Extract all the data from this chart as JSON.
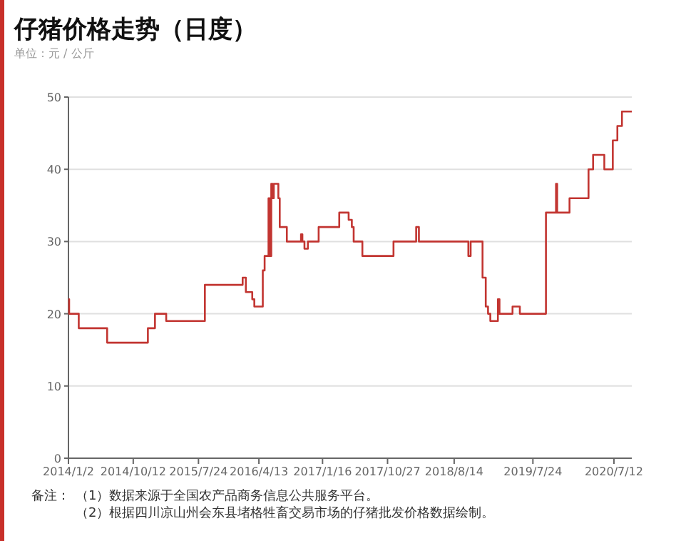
{
  "chart_data": {
    "type": "step",
    "title": "仔猪价格走势（日度）",
    "subtitle": "单位：元 / 公斤",
    "x": [
      "2014-01-02",
      "2014-01-05",
      "2014-02-16",
      "2014-06-20",
      "2014-12-15",
      "2015-01-15",
      "2015-03-05",
      "2015-08-21",
      "2016-02-02",
      "2016-02-16",
      "2016-03-15",
      "2016-03-24",
      "2016-04-30",
      "2016-05-08",
      "2016-05-25",
      "2016-05-31",
      "2016-06-06",
      "2016-06-12",
      "2016-06-17",
      "2016-07-07",
      "2016-07-13",
      "2016-08-13",
      "2016-10-14",
      "2016-10-20",
      "2016-10-29",
      "2016-11-13",
      "2016-12-30",
      "2017-03-30",
      "2017-05-10",
      "2017-05-24",
      "2017-06-01",
      "2017-07-09",
      "2017-11-22",
      "2018-03-01",
      "2018-03-13",
      "2018-10-15",
      "2018-10-25",
      "2018-12-16",
      "2018-12-30",
      "2019-01-09",
      "2019-01-19",
      "2019-02-21",
      "2019-02-28",
      "2019-04-26",
      "2019-05-28",
      "2019-09-19",
      "2019-11-02",
      "2019-11-07",
      "2019-12-31",
      "2020-03-23",
      "2020-04-12",
      "2020-05-31",
      "2020-07-07",
      "2020-07-27",
      "2020-08-16",
      "2020-09-28"
    ],
    "values": [
      22,
      20,
      18,
      16,
      18,
      20,
      19,
      24,
      25,
      23,
      22,
      21,
      26,
      28,
      36,
      28,
      38,
      36,
      38,
      36,
      32,
      30,
      31,
      30,
      29,
      30,
      32,
      34,
      33,
      32,
      30,
      28,
      30,
      32,
      30,
      28,
      30,
      25,
      21,
      20,
      19,
      22,
      20,
      21,
      20,
      34,
      38,
      34,
      36,
      40,
      42,
      40,
      44,
      46,
      48,
      48
    ],
    "color": "#c23531",
    "marker": "none",
    "grid": "y",
    "xlim": [
      "2014-01-02",
      "2020-09-28"
    ],
    "xticks": [
      {
        "value": "2014-01-02",
        "label": "2014/1/2"
      },
      {
        "value": "2014-10-12",
        "label": "2014/10/12"
      },
      {
        "value": "2015-07-24",
        "label": "2015/7/24"
      },
      {
        "value": "2016-04-13",
        "label": "2016/4/13"
      },
      {
        "value": "2017-01-16",
        "label": "2017/1/16"
      },
      {
        "value": "2017-10-27",
        "label": "2017/10/27"
      },
      {
        "value": "2018-08-14",
        "label": "2018/8/14"
      },
      {
        "value": "2019-07-24",
        "label": "2019/7/24"
      },
      {
        "value": "2020-07-12",
        "label": "2020/7/12"
      }
    ],
    "ylim": [
      0,
      50
    ],
    "yticks": [
      0,
      10,
      20,
      30,
      40,
      50
    ],
    "annotations": [
      "备注：",
      "（1）数据来源于全国农产品商务信息公共服务平台。",
      "（2）根据四川凉山州会东县堵格牲畜交易市场的仔猪批发价格数据绘制。"
    ]
  }
}
